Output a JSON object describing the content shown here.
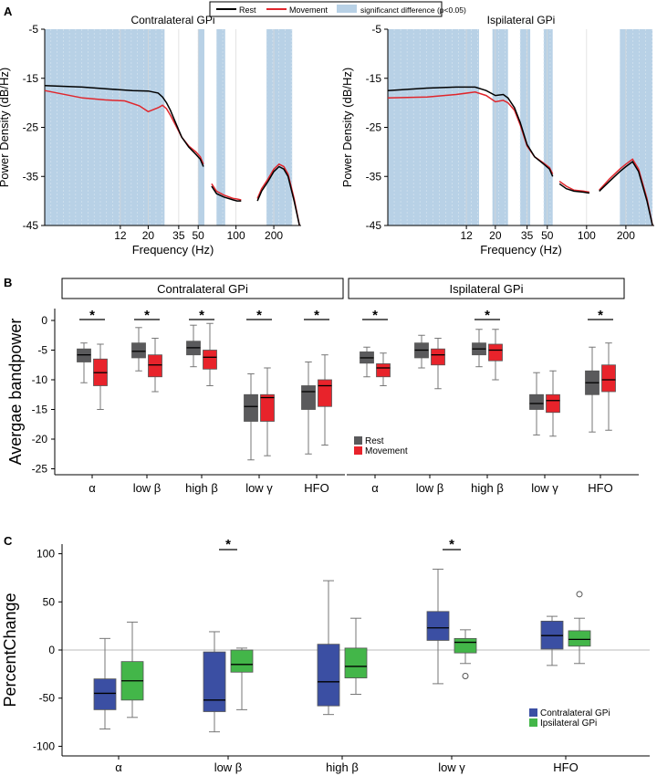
{
  "colors": {
    "rest": "#000000",
    "movement": "#e0262c",
    "significance": "#b8d1e6",
    "rest_box": "#5a5a5c",
    "movement_box": "#e8232b",
    "contralateral": "#3b4fa3",
    "ipsilateral": "#43b649"
  },
  "legend_a": {
    "rest": "Rest",
    "movement": "Movement",
    "significance": "significanct difference (p<0.05)"
  },
  "panels": {
    "a": "A",
    "b": "B",
    "c": "C"
  },
  "chart_data": [
    {
      "id": "A-contralateral",
      "type": "line",
      "title": "Contralateral GPi",
      "xlabel": "Frequency (Hz)",
      "ylabel": "Power Density (dB/Hz)",
      "xscale": "log",
      "xlim": [
        3,
        330
      ],
      "ylim": [
        -45,
        -5
      ],
      "xticks": [
        12,
        20,
        35,
        50,
        100,
        200
      ],
      "yticks": [
        -5,
        -15,
        -25,
        -35,
        -45
      ],
      "significant_bands": [
        [
          3,
          27
        ],
        [
          50,
          56
        ],
        [
          70,
          82
        ],
        [
          175,
          280
        ]
      ],
      "series": [
        {
          "name": "Rest",
          "segments": [
            [
              [
                3,
                -16.5
              ],
              [
                6,
                -16.8
              ],
              [
                10,
                -17.2
              ],
              [
                15,
                -17.5
              ],
              [
                20,
                -17.6
              ],
              [
                24,
                -18
              ],
              [
                26,
                -18.8
              ],
              [
                28,
                -20
              ],
              [
                30,
                -21.5
              ],
              [
                33,
                -24
              ],
              [
                37,
                -27
              ],
              [
                42,
                -29
              ],
              [
                48,
                -30.5
              ],
              [
                52,
                -31.5
              ],
              [
                55,
                -33
              ]
            ],
            [
              [
                64,
                -37
              ],
              [
                70,
                -38.5
              ],
              [
                80,
                -39.2
              ],
              [
                95,
                -39.8
              ],
              [
                102,
                -40
              ],
              [
                110,
                -40
              ]
            ],
            [
              [
                148,
                -40
              ],
              [
                160,
                -38
              ],
              [
                180,
                -36
              ],
              [
                200,
                -34
              ],
              [
                220,
                -33
              ],
              [
                240,
                -33.5
              ],
              [
                260,
                -35
              ],
              [
                290,
                -40
              ],
              [
                320,
                -45
              ]
            ]
          ]
        },
        {
          "name": "Movement",
          "segments": [
            [
              [
                3,
                -17.5
              ],
              [
                6,
                -19
              ],
              [
                9,
                -19.4
              ],
              [
                13,
                -19.6
              ],
              [
                17,
                -20.6
              ],
              [
                20,
                -21.8
              ],
              [
                24,
                -21
              ],
              [
                26,
                -20.5
              ],
              [
                28,
                -21.2
              ],
              [
                30,
                -22.5
              ],
              [
                33,
                -24.5
              ],
              [
                37,
                -27
              ],
              [
                42,
                -28.8
              ],
              [
                48,
                -30
              ],
              [
                52,
                -31
              ],
              [
                55,
                -32.5
              ]
            ],
            [
              [
                64,
                -36.5
              ],
              [
                70,
                -38
              ],
              [
                80,
                -38.8
              ],
              [
                95,
                -39.5
              ],
              [
                102,
                -39.6
              ],
              [
                110,
                -39.8
              ]
            ],
            [
              [
                148,
                -39.5
              ],
              [
                160,
                -37.5
              ],
              [
                180,
                -35.5
              ],
              [
                200,
                -33.5
              ],
              [
                220,
                -32.5
              ],
              [
                240,
                -33
              ],
              [
                260,
                -34.5
              ],
              [
                290,
                -39.5
              ],
              [
                320,
                -45
              ]
            ]
          ]
        }
      ]
    },
    {
      "id": "A-ipsilateral",
      "type": "line",
      "title": "Ispilateral GPi",
      "xlabel": "Frequency (Hz)",
      "ylabel": "Power Density (dB/Hz)",
      "xscale": "log",
      "xlim": [
        3,
        330
      ],
      "ylim": [
        -45,
        -5
      ],
      "xticks": [
        12,
        20,
        35,
        50,
        100,
        200
      ],
      "yticks": [
        -5,
        -15,
        -25,
        -35,
        -45
      ],
      "significant_bands": [
        [
          3,
          15
        ],
        [
          19,
          25
        ],
        [
          31,
          37
        ],
        [
          47,
          55
        ],
        [
          180,
          320
        ]
      ],
      "series": [
        {
          "name": "Rest",
          "segments": [
            [
              [
                3,
                -17.5
              ],
              [
                6,
                -17
              ],
              [
                10,
                -16.8
              ],
              [
                14,
                -16.8
              ],
              [
                17,
                -17.5
              ],
              [
                20,
                -18.5
              ],
              [
                23,
                -18.3
              ],
              [
                25,
                -19
              ],
              [
                28,
                -21
              ],
              [
                31,
                -24
              ],
              [
                35,
                -28.5
              ],
              [
                40,
                -31
              ],
              [
                47,
                -32.5
              ],
              [
                52,
                -33.5
              ],
              [
                55,
                -35
              ]
            ],
            [
              [
                62,
                -36.5
              ],
              [
                70,
                -37.5
              ],
              [
                80,
                -38
              ],
              [
                95,
                -38.2
              ],
              [
                105,
                -38.4
              ]
            ],
            [
              [
                125,
                -38
              ],
              [
                150,
                -36
              ],
              [
                180,
                -34
              ],
              [
                200,
                -33
              ],
              [
                225,
                -32
              ],
              [
                250,
                -34
              ],
              [
                290,
                -40
              ],
              [
                320,
                -45
              ]
            ]
          ]
        },
        {
          "name": "Movement",
          "segments": [
            [
              [
                3,
                -19
              ],
              [
                6,
                -18.8
              ],
              [
                10,
                -18.3
              ],
              [
                14,
                -17.8
              ],
              [
                17,
                -18.5
              ],
              [
                20,
                -19.8
              ],
              [
                23,
                -19.5
              ],
              [
                25,
                -20
              ],
              [
                28,
                -21.5
              ],
              [
                31,
                -24.5
              ],
              [
                35,
                -28.8
              ],
              [
                40,
                -31
              ],
              [
                47,
                -32.3
              ],
              [
                52,
                -33.2
              ],
              [
                55,
                -34.5
              ]
            ],
            [
              [
                62,
                -36
              ],
              [
                70,
                -37
              ],
              [
                80,
                -37.8
              ],
              [
                95,
                -38
              ],
              [
                105,
                -38.2
              ]
            ],
            [
              [
                125,
                -37.8
              ],
              [
                150,
                -35.5
              ],
              [
                180,
                -33.5
              ],
              [
                200,
                -32.5
              ],
              [
                225,
                -31.5
              ],
              [
                250,
                -33.5
              ],
              [
                290,
                -39.5
              ],
              [
                320,
                -45
              ]
            ]
          ]
        }
      ]
    },
    {
      "id": "B",
      "type": "box",
      "ylabel": "Avergae bandpower",
      "ylim": [
        -26,
        2
      ],
      "yticks": [
        0,
        -5,
        -10,
        -15,
        -20,
        -25
      ],
      "groups": [
        "Contralateral GPi",
        "Ispilateral GPi"
      ],
      "categories": [
        "α",
        "low β",
        "high β",
        "low γ",
        "HFO"
      ],
      "legend": [
        "Rest",
        "Movement"
      ],
      "significance_marker": "*",
      "significant": [
        [
          true,
          true,
          true,
          true,
          true
        ],
        [
          true,
          false,
          true,
          false,
          true
        ]
      ],
      "series": [
        {
          "name": "Rest",
          "boxes": [
            [
              {
                "min": -10.5,
                "q1": -7,
                "med": -5.8,
                "q3": -4.8,
                "max": -3.8
              },
              {
                "min": -8.5,
                "q1": -6.3,
                "med": -5.2,
                "q3": -3.8,
                "max": -1.2
              },
              {
                "min": -7.8,
                "q1": -5.8,
                "med": -4.6,
                "q3": -3.5,
                "max": -0.8
              },
              {
                "min": -23.5,
                "q1": -17,
                "med": -14.5,
                "q3": -12.5,
                "max": -9
              },
              {
                "min": -22.5,
                "q1": -15,
                "med": -12,
                "q3": -11,
                "max": -7
              }
            ],
            [
              {
                "min": -9.5,
                "q1": -7.2,
                "med": -6.3,
                "q3": -5.3,
                "max": -4.5
              },
              {
                "min": -8,
                "q1": -6.3,
                "med": -5,
                "q3": -3.8,
                "max": -2.5
              },
              {
                "min": -7.8,
                "q1": -5.8,
                "med": -4.8,
                "q3": -3.8,
                "max": -1.5
              },
              {
                "min": -19.3,
                "q1": -15,
                "med": -14,
                "q3": -12.5,
                "max": -8.8
              },
              {
                "min": -18.8,
                "q1": -12.5,
                "med": -10.5,
                "q3": -8.5,
                "max": -4.5
              }
            ]
          ]
        },
        {
          "name": "Movement",
          "boxes": [
            [
              {
                "min": -15,
                "q1": -11,
                "med": -8.8,
                "q3": -6.5,
                "max": -4
              },
              {
                "min": -12,
                "q1": -9.5,
                "med": -7.5,
                "q3": -5.8,
                "max": -3
              },
              {
                "min": -11,
                "q1": -8.2,
                "med": -6.2,
                "q3": -5,
                "max": -0.5
              },
              {
                "min": -22.8,
                "q1": -17,
                "med": -13,
                "q3": -12.5,
                "max": -8
              },
              {
                "min": -21,
                "q1": -14.5,
                "med": -11,
                "q3": -10,
                "max": -5.8
              }
            ],
            [
              {
                "min": -11,
                "q1": -9.5,
                "med": -8,
                "q3": -7.3,
                "max": -5.5
              },
              {
                "min": -11.5,
                "q1": -7.5,
                "med": -5.8,
                "q3": -4.8,
                "max": -3
              },
              {
                "min": -10,
                "q1": -6.8,
                "med": -5,
                "q3": -4,
                "max": -1.5
              },
              {
                "min": -19.5,
                "q1": -15.5,
                "med": -13.5,
                "q3": -12.5,
                "max": -8.5
              },
              {
                "min": -18.5,
                "q1": -12,
                "med": -10,
                "q3": -7.5,
                "max": -3.8
              }
            ]
          ]
        }
      ]
    },
    {
      "id": "C",
      "type": "box",
      "ylabel": "PercentChange",
      "ylim": [
        -110,
        110
      ],
      "yticks": [
        100,
        50,
        0,
        -50,
        -100
      ],
      "categories": [
        "α",
        "low β",
        "high β",
        "low γ",
        "HFO"
      ],
      "legend": [
        "Contralateral GPi",
        "Ipsilateral GPi"
      ],
      "significance_marker": "*",
      "significant": [
        false,
        true,
        false,
        true,
        false
      ],
      "series": [
        {
          "name": "Contralateral GPi",
          "boxes": [
            {
              "min": -82,
              "q1": -62,
              "med": -45,
              "q3": -30,
              "max": 12,
              "outliers": []
            },
            {
              "min": -85,
              "q1": -64,
              "med": -52,
              "q3": -2,
              "max": 19,
              "outliers": []
            },
            {
              "min": -67,
              "q1": -58,
              "med": -33,
              "q3": 6,
              "max": 72,
              "outliers": []
            },
            {
              "min": -35,
              "q1": 10,
              "med": 23,
              "q3": 40,
              "max": 84,
              "outliers": []
            },
            {
              "min": -16,
              "q1": 1,
              "med": 15,
              "q3": 30,
              "max": 35,
              "outliers": []
            }
          ]
        },
        {
          "name": "Ipsilateral GPi",
          "boxes": [
            {
              "min": -70,
              "q1": -52,
              "med": -32,
              "q3": -12,
              "max": 29,
              "outliers": []
            },
            {
              "min": -62,
              "q1": -23,
              "med": -15,
              "q3": 0,
              "max": 2,
              "outliers": []
            },
            {
              "min": -46,
              "q1": -29,
              "med": -17,
              "q3": 2,
              "max": 33,
              "outliers": []
            },
            {
              "min": -14,
              "q1": -3,
              "med": 8,
              "q3": 12,
              "max": 21,
              "outliers": [
                -27
              ]
            },
            {
              "min": -14,
              "q1": 4,
              "med": 11,
              "q3": 20,
              "max": 33,
              "outliers": [
                58
              ]
            }
          ]
        }
      ]
    }
  ]
}
